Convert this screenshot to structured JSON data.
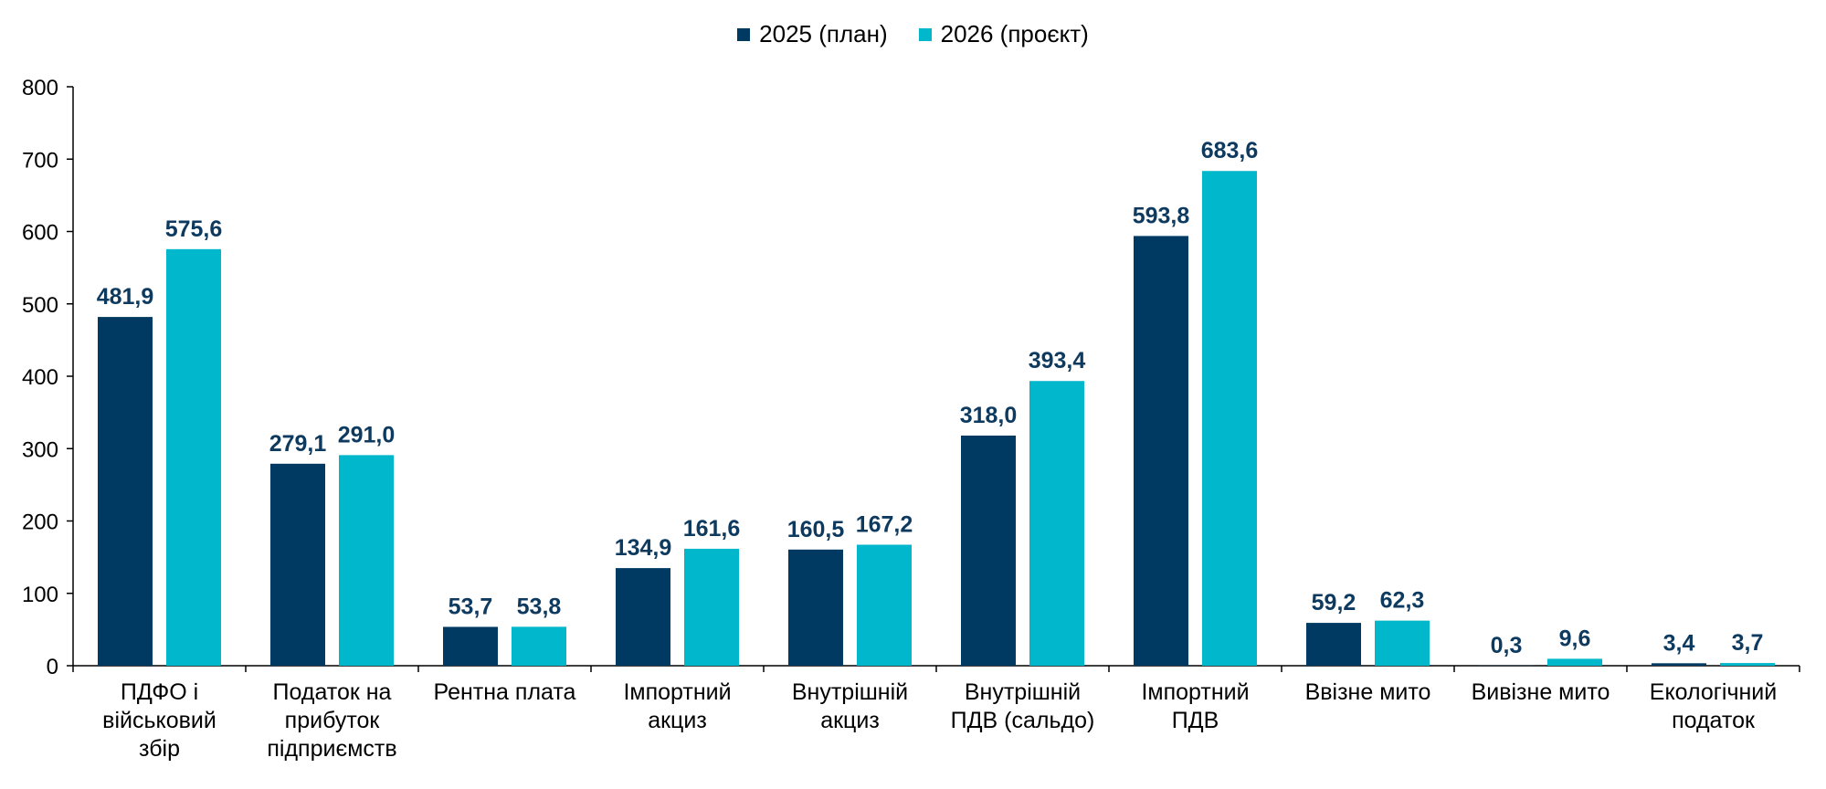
{
  "chart_data": {
    "type": "bar",
    "categories": [
      [
        "ПДФО і",
        "військовий",
        "збір"
      ],
      [
        "Податок на",
        "прибуток",
        "підприємств"
      ],
      [
        "Рентна плата"
      ],
      [
        "Імпортний",
        "акциз"
      ],
      [
        "Внутрішній",
        "акциз"
      ],
      [
        "Внутрішній",
        "ПДВ (сальдо)"
      ],
      [
        "Імпортний",
        "ПДВ"
      ],
      [
        "Ввізне мито"
      ],
      [
        "Вивізне мито"
      ],
      [
        "Екологічний",
        "податок"
      ]
    ],
    "series": [
      {
        "name": "2025 (план)",
        "color": "#003a63",
        "values": [
          481.9,
          279.1,
          53.7,
          134.9,
          160.5,
          318.0,
          593.8,
          59.2,
          0.3,
          3.4
        ],
        "labels": [
          "481,9",
          "279,1",
          "53,7",
          "134,9",
          "160,5",
          "318,0",
          "593,8",
          "59,2",
          "0,3",
          "3,4"
        ]
      },
      {
        "name": "2026 (проєкт)",
        "color": "#00b7cc",
        "values": [
          575.6,
          291.0,
          53.8,
          161.6,
          167.2,
          393.4,
          683.6,
          62.3,
          9.6,
          3.7
        ],
        "labels": [
          "575,6",
          "291,0",
          "53,8",
          "161,6",
          "167,2",
          "393,4",
          "683,6",
          "62,3",
          "9,6",
          "3,7"
        ]
      }
    ],
    "yticks": [
      0,
      100,
      200,
      300,
      400,
      500,
      600,
      700,
      800
    ],
    "ylim": [
      0,
      800
    ],
    "grid": false,
    "legend_position": "top-center",
    "data_label_color": "#0d3a5e",
    "title": "",
    "xlabel": "",
    "ylabel": ""
  }
}
